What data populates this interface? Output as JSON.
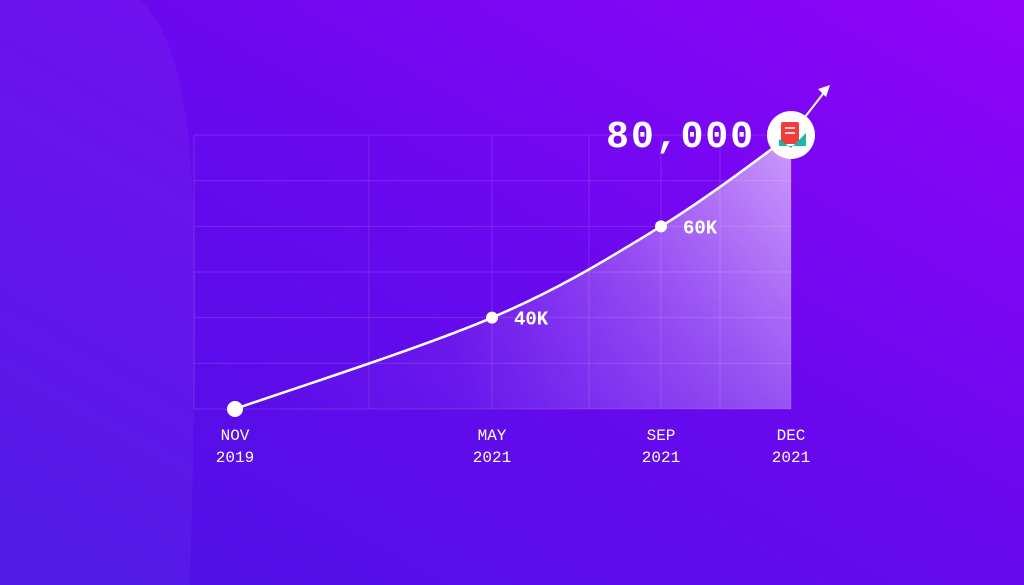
{
  "chart_data": {
    "type": "line",
    "categories": [
      [
        "NOV",
        "2019"
      ],
      [
        "MAY",
        "2021"
      ],
      [
        "SEP",
        "2021"
      ],
      [
        "DEC",
        "2021"
      ]
    ],
    "values": [
      20000,
      40000,
      60000,
      80000
    ],
    "value_labels": [
      null,
      "40K",
      "60K",
      "80,000"
    ],
    "color": "#ffffff",
    "ylim": [
      20000,
      80000
    ]
  }
}
